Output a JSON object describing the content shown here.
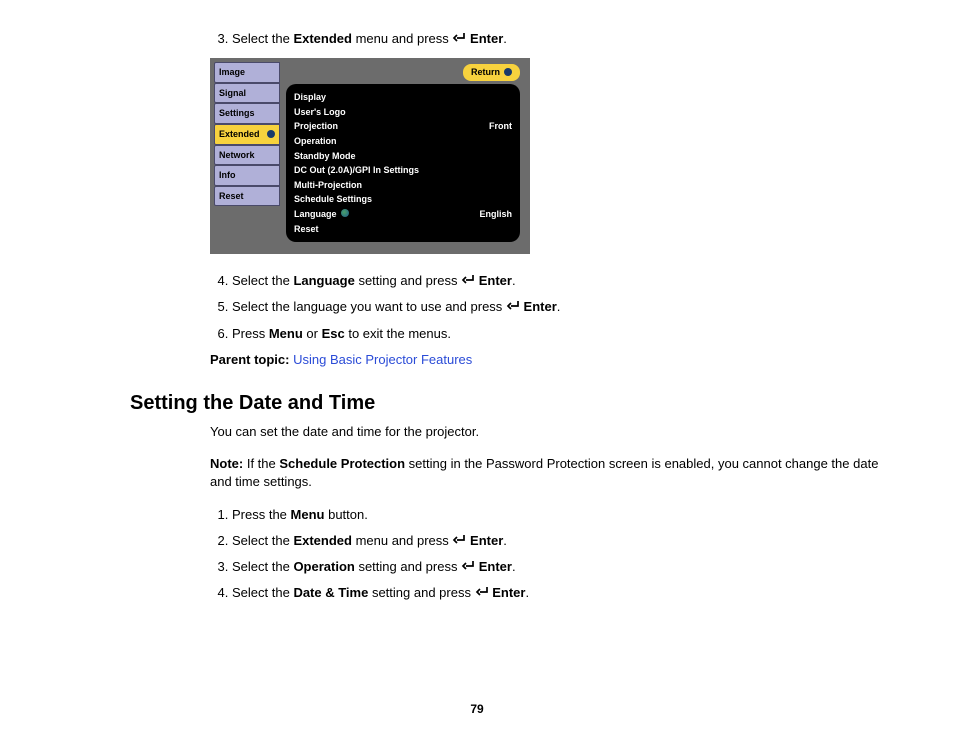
{
  "page_number": "79",
  "section1": {
    "step3": {
      "num": "3.",
      "pre": "Select the ",
      "b1": "Extended",
      "mid": " menu and press ",
      "b2": "Enter",
      "post": "."
    },
    "step4": {
      "num": "4.",
      "pre": "Select the ",
      "b1": "Language",
      "mid": " setting and press ",
      "b2": "Enter",
      "post": "."
    },
    "step5": {
      "num": "5.",
      "t1": "Select the language you want to use and press ",
      "b1": "Enter",
      "post": "."
    },
    "step6": {
      "num": "6.",
      "t1": "Press ",
      "b1": "Menu",
      "t2": " or ",
      "b2": "Esc",
      "t3": " to exit the menus."
    },
    "parent_label": "Parent topic:",
    "parent_link": "Using Basic Projector Features"
  },
  "osd": {
    "tabs": [
      "Image",
      "Signal",
      "Settings",
      "Extended",
      "Network",
      "Info",
      "Reset"
    ],
    "selected_index": 3,
    "return_label": "Return",
    "rows": [
      {
        "l": "Display",
        "r": ""
      },
      {
        "l": "User's Logo",
        "r": ""
      },
      {
        "l": "Projection",
        "r": "Front"
      },
      {
        "l": "Operation",
        "r": ""
      },
      {
        "l": "Standby Mode",
        "r": ""
      },
      {
        "l": "DC Out (2.0A)/GPI In Settings",
        "r": ""
      },
      {
        "l": "Multi-Projection",
        "r": ""
      },
      {
        "l": "Schedule Settings",
        "r": ""
      },
      {
        "l": "Language",
        "r": "English",
        "icon": true
      },
      {
        "l": "Reset",
        "r": ""
      }
    ]
  },
  "section2": {
    "heading": "Setting the Date and Time",
    "intro": "You can set the date and time for the projector.",
    "note_label": "Note:",
    "note_t1": " If the ",
    "note_b1": "Schedule Protection",
    "note_t2": " setting in the Password Protection screen is enabled, you cannot change the date and time settings.",
    "step1": {
      "num": "1.",
      "t1": "Press the ",
      "b1": "Menu",
      "t2": " button."
    },
    "step2": {
      "num": "2.",
      "pre": "Select the ",
      "b1": "Extended",
      "mid": " menu and press ",
      "b2": "Enter",
      "post": "."
    },
    "step3": {
      "num": "3.",
      "pre": "Select the ",
      "b1": "Operation",
      "mid": " setting and press ",
      "b2": "Enter",
      "post": "."
    },
    "step4": {
      "num": "4.",
      "pre": "Select the ",
      "b1": "Date & Time",
      "mid": " setting and press ",
      "b2": "Enter",
      "post": "."
    }
  }
}
